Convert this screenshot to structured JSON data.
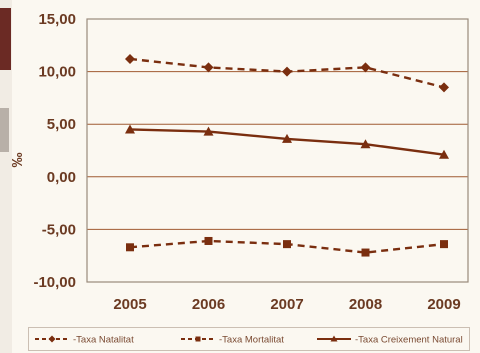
{
  "colors": {
    "series": "#7a2e0f",
    "grid": "#a05a32",
    "text": "#6b3a22",
    "border": "#9a8a7c"
  },
  "chart_data": {
    "type": "line",
    "title": "",
    "xlabel": "",
    "ylabel": "‰",
    "x": [
      "2005",
      "2006",
      "2007",
      "2008",
      "2009"
    ],
    "ylim": [
      -10,
      15
    ],
    "yticks": [
      "15,00",
      "10,00",
      "5,00",
      "0,00",
      "-5,00",
      "-10,00"
    ],
    "grid": true,
    "legend_position": "bottom",
    "series": [
      {
        "name": "Taxa Natalitat",
        "marker": "diamond",
        "line": "dashed",
        "values": [
          11.2,
          10.4,
          10.0,
          10.4,
          8.5
        ]
      },
      {
        "name": "Taxa Mortalitat",
        "marker": "square",
        "line": "dashed",
        "values": [
          -6.7,
          -6.1,
          -6.4,
          -7.2,
          -6.4
        ]
      },
      {
        "name": "Taxa Creixement Natural",
        "marker": "triangle",
        "line": "solid",
        "values": [
          4.5,
          4.3,
          3.6,
          3.1,
          2.1
        ]
      }
    ]
  }
}
